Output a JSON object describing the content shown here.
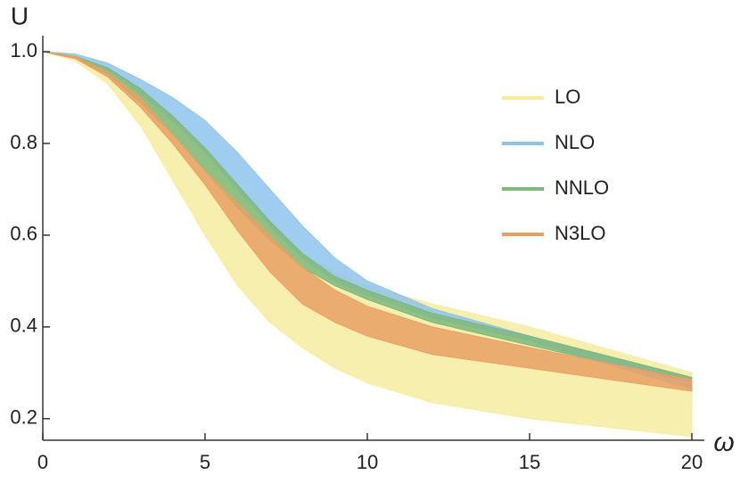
{
  "chart_data": {
    "type": "band",
    "y_label": "U",
    "x_label": "ω",
    "x": [
      0,
      1,
      2,
      3,
      4,
      5,
      6,
      7,
      8,
      9,
      10,
      12,
      15,
      20
    ],
    "series": [
      {
        "name": "LO",
        "color": "#f6eca0",
        "upper": [
          1,
          0.99,
          0.965,
          0.92,
          0.86,
          0.79,
          0.71,
          0.63,
          0.56,
          0.52,
          0.49,
          0.45,
          0.4,
          0.3
        ],
        "lower": [
          1,
          0.98,
          0.93,
          0.84,
          0.72,
          0.6,
          0.49,
          0.41,
          0.355,
          0.31,
          0.278,
          0.235,
          0.2,
          0.161
        ]
      },
      {
        "name": "NLO",
        "color": "#8ec4ec",
        "upper": [
          1,
          0.995,
          0.975,
          0.94,
          0.9,
          0.85,
          0.78,
          0.7,
          0.62,
          0.55,
          0.5,
          0.44,
          0.38,
          0.29
        ],
        "lower": [
          1,
          0.99,
          0.96,
          0.91,
          0.85,
          0.78,
          0.7,
          0.62,
          0.55,
          0.5,
          0.47,
          0.42,
          0.37,
          0.264
        ]
      },
      {
        "name": "NNLO",
        "color": "#7fb87a",
        "upper": [
          1,
          0.99,
          0.965,
          0.92,
          0.86,
          0.79,
          0.71,
          0.63,
          0.56,
          0.51,
          0.48,
          0.43,
          0.38,
          0.29
        ],
        "lower": [
          1,
          0.985,
          0.95,
          0.89,
          0.82,
          0.74,
          0.66,
          0.59,
          0.53,
          0.49,
          0.46,
          0.41,
          0.36,
          0.28
        ]
      },
      {
        "name": "N3LO",
        "color": "#e9a064",
        "upper": [
          1,
          0.99,
          0.955,
          0.9,
          0.82,
          0.74,
          0.67,
          0.6,
          0.53,
          0.48,
          0.445,
          0.4,
          0.355,
          0.285
        ],
        "lower": [
          1,
          0.985,
          0.945,
          0.88,
          0.8,
          0.71,
          0.61,
          0.52,
          0.45,
          0.41,
          0.38,
          0.34,
          0.31,
          0.26
        ]
      }
    ],
    "xlim": [
      0,
      20
    ],
    "ylim": [
      0.153,
      1.035
    ],
    "xticks": [
      0,
      5,
      10,
      15,
      20
    ],
    "yticks": [
      0.2,
      0.4,
      0.6,
      0.8,
      {
        "value": 1,
        "label": "1.0"
      }
    ],
    "legend": "upper-right"
  }
}
